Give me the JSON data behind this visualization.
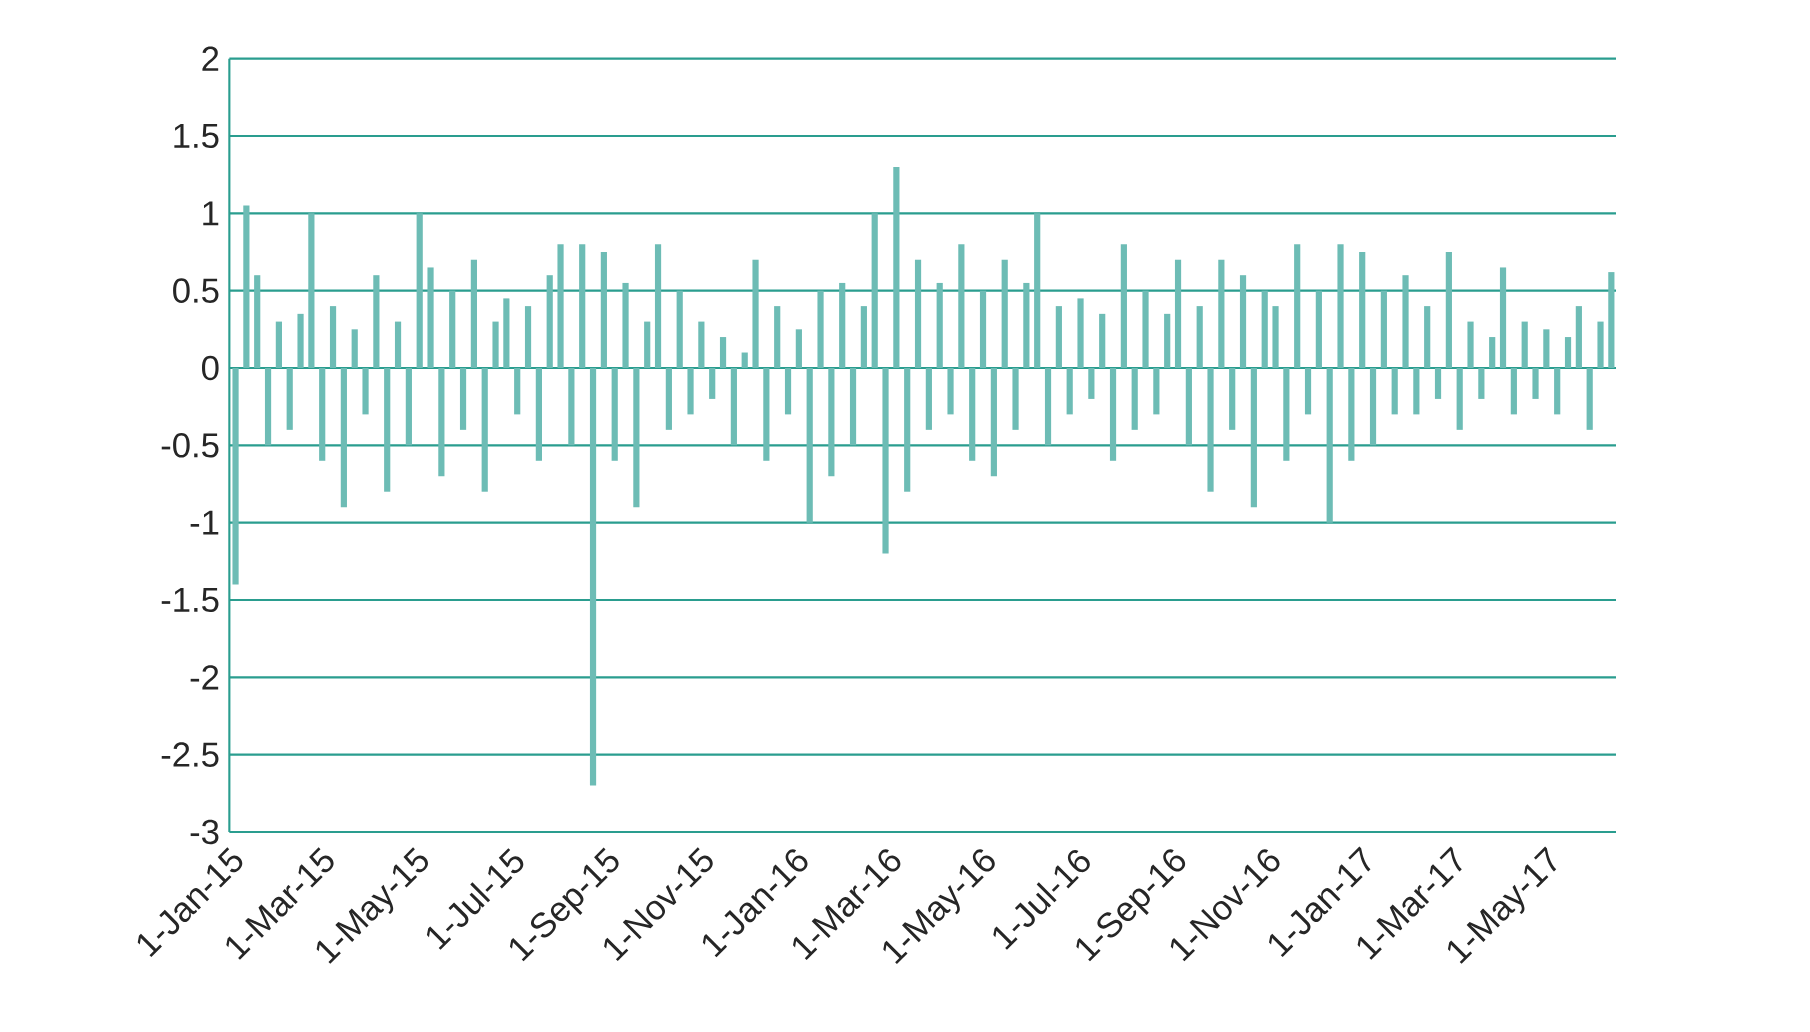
{
  "chart_data": {
    "type": "bar",
    "color": "#6dbcb5",
    "grid": "y",
    "ylim": [
      -3,
      2
    ],
    "yticks": [
      -3,
      -2.5,
      -2,
      -1.5,
      -1,
      -0.5,
      0,
      0.5,
      1,
      1.5,
      2
    ],
    "xlim": [
      "2015-01-01",
      "2017-06-15"
    ],
    "xticks": [
      {
        "value": "2015-01-01",
        "label": "1-Jan-15"
      },
      {
        "value": "2015-03-01",
        "label": "1-Mar-15"
      },
      {
        "value": "2015-05-01",
        "label": "1-May-15"
      },
      {
        "value": "2015-07-01",
        "label": "1-Jul-15"
      },
      {
        "value": "2015-09-01",
        "label": "1-Sep-15"
      },
      {
        "value": "2015-11-01",
        "label": "1-Nov-15"
      },
      {
        "value": "2016-01-01",
        "label": "1-Jan-16"
      },
      {
        "value": "2016-03-01",
        "label": "1-Mar-16"
      },
      {
        "value": "2016-05-01",
        "label": "1-May-16"
      },
      {
        "value": "2016-07-01",
        "label": "1-Jul-16"
      },
      {
        "value": "2016-09-01",
        "label": "1-Sep-16"
      },
      {
        "value": "2016-11-01",
        "label": "1-Nov-16"
      },
      {
        "value": "2017-01-01",
        "label": "1-Jan-17"
      },
      {
        "value": "2017-03-01",
        "label": "1-Mar-17"
      },
      {
        "value": "2017-05-01",
        "label": "1-May-17"
      }
    ],
    "x": [
      "2015-01-05",
      "2015-01-12",
      "2015-01-19",
      "2015-01-26",
      "2015-02-02",
      "2015-02-09",
      "2015-02-16",
      "2015-02-23",
      "2015-03-02",
      "2015-03-09",
      "2015-03-16",
      "2015-03-23",
      "2015-03-30",
      "2015-04-06",
      "2015-04-13",
      "2015-04-20",
      "2015-04-27",
      "2015-05-04",
      "2015-05-11",
      "2015-05-18",
      "2015-05-25",
      "2015-06-01",
      "2015-06-08",
      "2015-06-15",
      "2015-06-22",
      "2015-06-29",
      "2015-07-06",
      "2015-07-13",
      "2015-07-20",
      "2015-07-27",
      "2015-08-03",
      "2015-08-10",
      "2015-08-17",
      "2015-08-24",
      "2015-08-31",
      "2015-09-07",
      "2015-09-14",
      "2015-09-21",
      "2015-09-28",
      "2015-10-05",
      "2015-10-12",
      "2015-10-19",
      "2015-10-26",
      "2015-11-02",
      "2015-11-09",
      "2015-11-16",
      "2015-11-23",
      "2015-11-30",
      "2015-12-07",
      "2015-12-14",
      "2015-12-21",
      "2015-12-28",
      "2016-01-04",
      "2016-01-11",
      "2016-01-18",
      "2016-01-25",
      "2016-02-01",
      "2016-02-08",
      "2016-02-15",
      "2016-02-22",
      "2016-02-29",
      "2016-03-07",
      "2016-03-14",
      "2016-03-21",
      "2016-03-28",
      "2016-04-04",
      "2016-04-11",
      "2016-04-18",
      "2016-04-25",
      "2016-05-02",
      "2016-05-09",
      "2016-05-16",
      "2016-05-23",
      "2016-05-30",
      "2016-06-06",
      "2016-06-13",
      "2016-06-20",
      "2016-06-27",
      "2016-07-04",
      "2016-07-11",
      "2016-07-18",
      "2016-07-25",
      "2016-08-01",
      "2016-08-08",
      "2016-08-15",
      "2016-08-22",
      "2016-08-29",
      "2016-09-05",
      "2016-09-12",
      "2016-09-19",
      "2016-09-26",
      "2016-10-03",
      "2016-10-10",
      "2016-10-17",
      "2016-10-24",
      "2016-10-31",
      "2016-11-07",
      "2016-11-14",
      "2016-11-21",
      "2016-11-28",
      "2016-12-05",
      "2016-12-12",
      "2016-12-19",
      "2016-12-26",
      "2017-01-02",
      "2017-01-09",
      "2017-01-16",
      "2017-01-23",
      "2017-01-30",
      "2017-02-06",
      "2017-02-13",
      "2017-02-20",
      "2017-02-27",
      "2017-03-06",
      "2017-03-13",
      "2017-03-20",
      "2017-03-27",
      "2017-04-03",
      "2017-04-10",
      "2017-04-17",
      "2017-04-24",
      "2017-05-01",
      "2017-05-08",
      "2017-05-15",
      "2017-05-22",
      "2017-05-29",
      "2017-06-05",
      "2017-06-12"
    ],
    "values": [
      -1.4,
      1.05,
      0.6,
      -0.5,
      0.3,
      -0.4,
      0.35,
      1.0,
      -0.6,
      0.4,
      -0.9,
      0.25,
      -0.3,
      0.6,
      -0.8,
      0.3,
      -0.5,
      1.0,
      0.65,
      -0.7,
      0.5,
      -0.4,
      0.7,
      -0.8,
      0.3,
      0.45,
      -0.3,
      0.4,
      -0.6,
      0.6,
      0.8,
      -0.5,
      0.8,
      -2.7,
      0.75,
      -0.6,
      0.55,
      -0.9,
      0.3,
      0.8,
      -0.4,
      0.5,
      -0.3,
      0.3,
      -0.2,
      0.2,
      -0.5,
      0.1,
      0.7,
      -0.6,
      0.4,
      -0.3,
      0.25,
      -1.0,
      0.5,
      -0.7,
      0.55,
      -0.5,
      0.4,
      1.0,
      -1.2,
      1.3,
      -0.8,
      0.7,
      -0.4,
      0.55,
      -0.3,
      0.8,
      -0.6,
      0.5,
      -0.7,
      0.7,
      -0.4,
      0.55,
      1.0,
      -0.5,
      0.4,
      -0.3,
      0.45,
      -0.2,
      0.35,
      -0.6,
      0.8,
      -0.4,
      0.5,
      -0.3,
      0.35,
      0.7,
      -0.5,
      0.4,
      -0.8,
      0.7,
      -0.4,
      0.6,
      -0.9,
      0.5,
      0.4,
      -0.6,
      0.8,
      -0.3,
      0.5,
      -1.0,
      0.8,
      -0.6,
      0.75,
      -0.5,
      0.5,
      -0.3,
      0.6,
      -0.3,
      0.4,
      -0.2,
      0.75,
      -0.4,
      0.3,
      -0.2,
      0.2,
      0.65,
      -0.3,
      0.3,
      -0.2,
      0.25,
      -0.3,
      0.2,
      0.4,
      -0.4,
      0.3,
      0.62
    ]
  }
}
